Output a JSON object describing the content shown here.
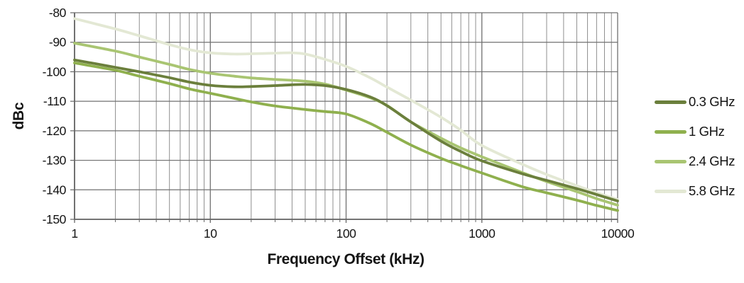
{
  "page": {
    "background": "#ffffff"
  },
  "chart_data": {
    "type": "line",
    "title": "",
    "xlabel": "Frequency Offset (kHz)",
    "ylabel": "dBc",
    "x_scale": "log",
    "xlim": [
      1,
      10000
    ],
    "ylim": [
      -150,
      -80
    ],
    "x_ticks": [
      "1",
      "10",
      "100",
      "1000",
      "10000"
    ],
    "y_ticks": [
      "-80",
      "-90",
      "-100",
      "-110",
      "-120",
      "-130",
      "-140",
      "-150"
    ],
    "grid": {
      "vertical": "log major and minor",
      "horizontal": "every 10 dB",
      "minor_color": "#8f8f8f",
      "major_color": "#707070",
      "axis_color": "#666666"
    },
    "legend_position": "right",
    "series": [
      {
        "name": "0.3 GHz",
        "color": "#6b7f3c",
        "x": [
          1,
          2,
          3,
          5,
          7,
          10,
          15,
          20,
          30,
          40,
          50,
          70,
          100,
          150,
          200,
          300,
          500,
          700,
          1000,
          2000,
          3000,
          5000,
          7000,
          10000
        ],
        "y": [
          -96,
          -98.5,
          -100,
          -102,
          -103.5,
          -104.6,
          -105.1,
          -105,
          -104.7,
          -104.4,
          -104.3,
          -104.7,
          -106,
          -108.5,
          -111.5,
          -117,
          -123.5,
          -127,
          -130.2,
          -134.6,
          -136.8,
          -139.6,
          -141.6,
          -143.8
        ]
      },
      {
        "name": "1 GHz",
        "color": "#8fb04e",
        "x": [
          1,
          2,
          3,
          5,
          7,
          10,
          15,
          20,
          30,
          50,
          70,
          100,
          150,
          200,
          300,
          500,
          700,
          1000,
          2000,
          3000,
          5000,
          7000,
          10000
        ],
        "y": [
          -97,
          -99.5,
          -101.5,
          -104,
          -105.8,
          -107.3,
          -109,
          -110.2,
          -111.6,
          -112.8,
          -113.5,
          -114.3,
          -117.5,
          -120.5,
          -124.8,
          -129.3,
          -131.8,
          -134.3,
          -139,
          -141,
          -143.5,
          -145.3,
          -147
        ]
      },
      {
        "name": "2.4 GHz",
        "color": "#a9c572",
        "x": [
          1,
          2,
          3,
          5,
          7,
          10,
          15,
          20,
          30,
          50,
          70,
          100,
          150,
          200,
          300,
          500,
          700,
          1000,
          2000,
          3000,
          5000,
          7000,
          10000
        ],
        "y": [
          -90.3,
          -93,
          -95,
          -97.5,
          -99.2,
          -100.5,
          -101.5,
          -102.1,
          -102.6,
          -103.2,
          -104.2,
          -106.2,
          -108.8,
          -111.4,
          -117,
          -122.5,
          -125.8,
          -128.8,
          -134.2,
          -137.2,
          -140.6,
          -143,
          -145.2
        ]
      },
      {
        "name": "5.8 GHz",
        "color": "#e3e8d4",
        "x": [
          1,
          2,
          3,
          5,
          7,
          10,
          15,
          20,
          30,
          40,
          50,
          70,
          100,
          150,
          200,
          300,
          500,
          700,
          1000,
          2000,
          3000,
          5000,
          7000,
          10000
        ],
        "y": [
          -82,
          -85.5,
          -87.8,
          -90.8,
          -92.5,
          -93.6,
          -94,
          -93.9,
          -93.7,
          -93.6,
          -94,
          -95.8,
          -98.2,
          -102,
          -105.2,
          -109.6,
          -115.4,
          -119.8,
          -125,
          -131.4,
          -134.8,
          -138.6,
          -141,
          -143.3
        ]
      }
    ]
  }
}
